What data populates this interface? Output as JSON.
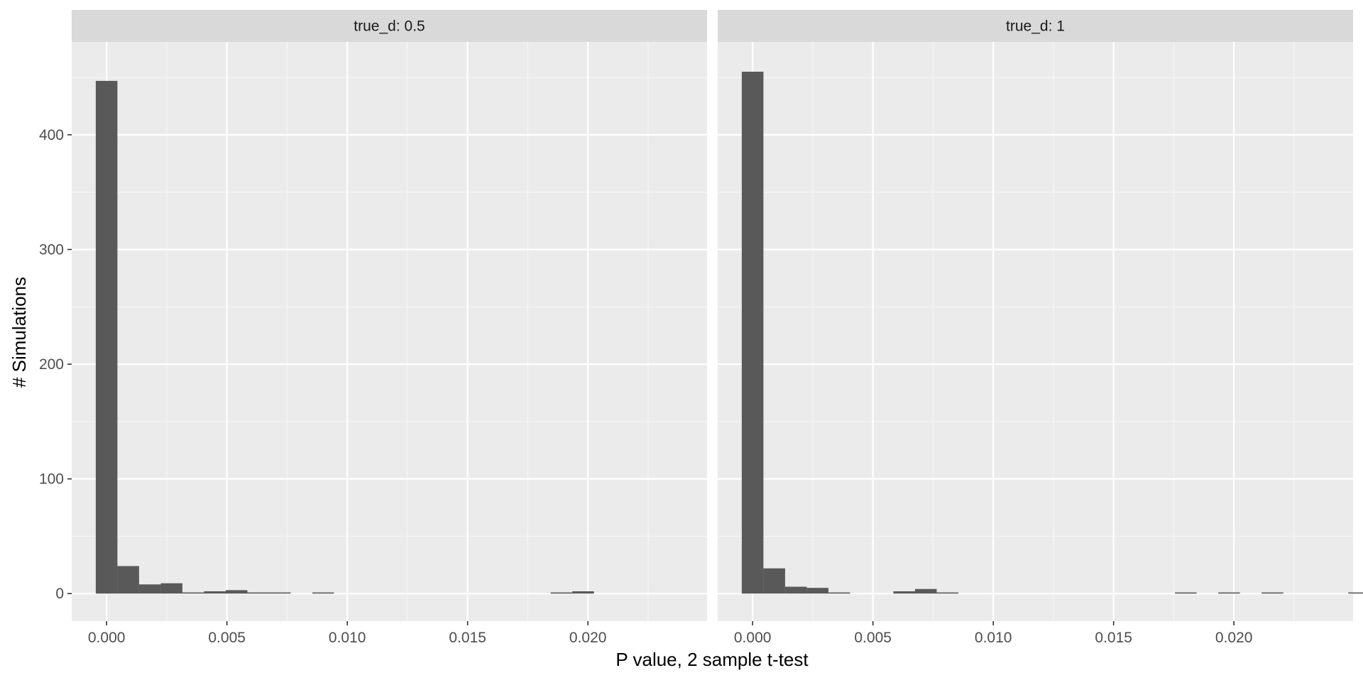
{
  "chart_data": [
    {
      "type": "bar",
      "panel_label": "true_d: 0.5",
      "bin_width": 0.0009,
      "bins": [
        {
          "x": 0.0,
          "count": 447
        },
        {
          "x": 0.0009,
          "count": 24
        },
        {
          "x": 0.0018,
          "count": 8
        },
        {
          "x": 0.0027,
          "count": 9
        },
        {
          "x": 0.0036,
          "count": 1
        },
        {
          "x": 0.0045,
          "count": 2
        },
        {
          "x": 0.0054,
          "count": 3
        },
        {
          "x": 0.0063,
          "count": 1
        },
        {
          "x": 0.0072,
          "count": 1
        },
        {
          "x": 0.009,
          "count": 1
        },
        {
          "x": 0.0189,
          "count": 1
        },
        {
          "x": 0.0198,
          "count": 2
        }
      ]
    },
    {
      "type": "bar",
      "panel_label": "true_d: 1",
      "bin_width": 0.0009,
      "bins": [
        {
          "x": 0.0,
          "count": 455
        },
        {
          "x": 0.0009,
          "count": 22
        },
        {
          "x": 0.0018,
          "count": 6
        },
        {
          "x": 0.0027,
          "count": 5
        },
        {
          "x": 0.0036,
          "count": 1
        },
        {
          "x": 0.0063,
          "count": 2
        },
        {
          "x": 0.0072,
          "count": 4
        },
        {
          "x": 0.0081,
          "count": 1
        },
        {
          "x": 0.018,
          "count": 1
        },
        {
          "x": 0.0198,
          "count": 1
        },
        {
          "x": 0.0216,
          "count": 1
        },
        {
          "x": 0.0252,
          "count": 1
        }
      ]
    }
  ],
  "axes": {
    "xlabel": "P value, 2 sample t-test",
    "ylabel": "# Simulations",
    "xlim": [
      -0.00145,
      0.02495
    ],
    "ylim": [
      -24,
      481
    ],
    "xticks": [
      0.0,
      0.005,
      0.01,
      0.015,
      0.02
    ],
    "xtick_labels": [
      "0.000",
      "0.005",
      "0.010",
      "0.015",
      "0.020"
    ],
    "yticks": [
      0,
      100,
      200,
      300,
      400
    ],
    "ytick_labels": [
      "0",
      "100",
      "200",
      "300",
      "400"
    ],
    "grid": true
  },
  "colors": {
    "panel_background": "#ebebeb",
    "strip_background": "#d9d9d9",
    "grid_major": "#ffffff",
    "grid_minor": "#f5f5f5",
    "bar_fill": "#595959",
    "text": "#000000",
    "tick_text": "#4d4d4d",
    "tick_line": "#333333"
  }
}
